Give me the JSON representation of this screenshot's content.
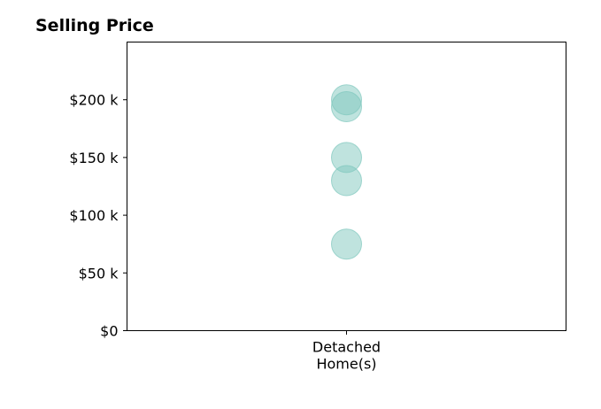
{
  "chart_data": {
    "type": "scatter",
    "title": "Selling Price",
    "categories": [
      "Detached\nHome(s)"
    ],
    "series": [
      {
        "category": "Detached\nHome(s)",
        "values": [
          200000,
          194000,
          150000,
          130000,
          75000
        ]
      }
    ],
    "ylim": [
      0,
      250000
    ],
    "yticks": [
      0,
      50000,
      100000,
      150000,
      200000
    ],
    "ytick_labels": [
      "$0",
      "$50 k",
      "$100 k",
      "$150 k",
      "$200 k"
    ],
    "grid": false,
    "point_color": "#7fc7bd",
    "point_edge_color": "#7fc7bd"
  }
}
